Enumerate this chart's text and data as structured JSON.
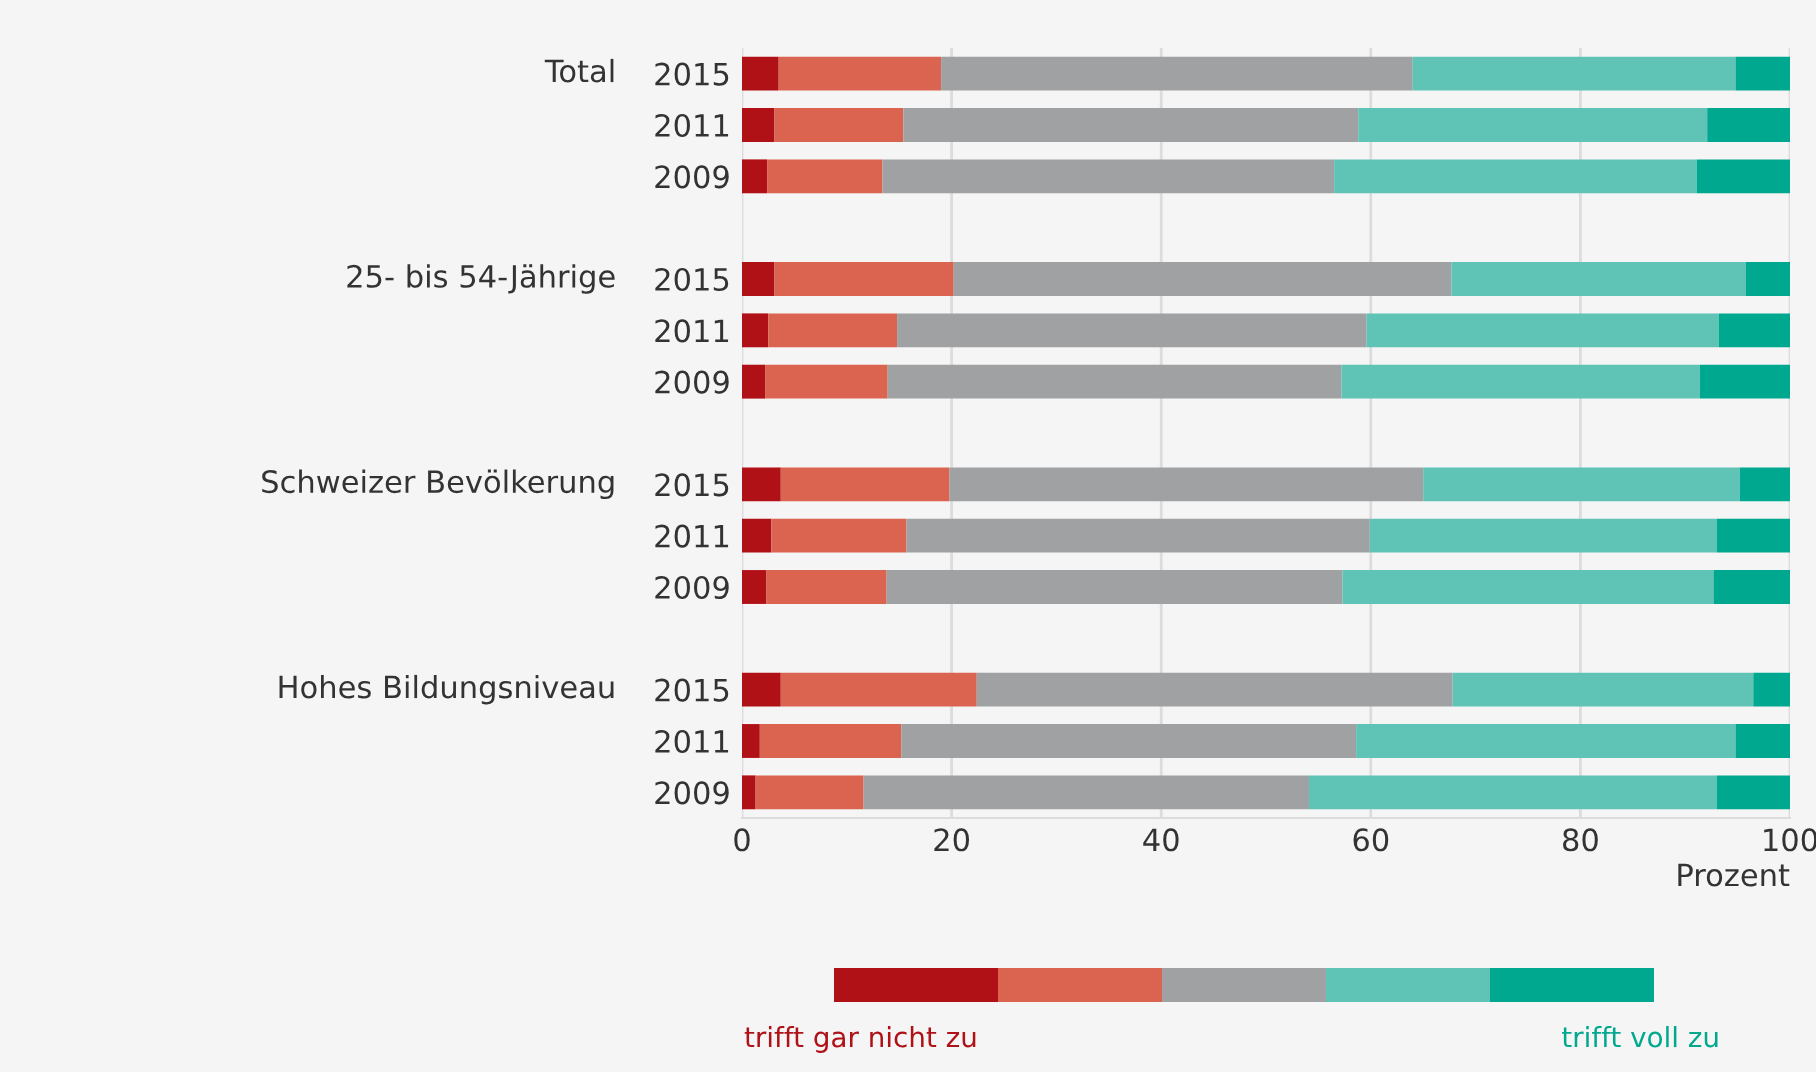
{
  "chart_data": {
    "type": "bar",
    "orientation": "horizontal",
    "stacked": true,
    "categories": [
      "2015",
      "2011",
      "2009",
      null,
      "2015",
      "2011",
      "2009",
      null,
      "2015",
      "2011",
      "2009",
      null,
      "2015",
      "2011",
      "2009"
    ],
    "annotations": [
      "Total",
      "25- bis 54-Jährige",
      "Schweizer Bevölkerung",
      "Hohes Bildungsniveau"
    ],
    "series": [
      {
        "name": "trifft gar nicht zu",
        "color": "#b01117",
        "values": [
          3.5,
          3.1,
          2.4,
          null,
          3.1,
          2.5,
          2.2,
          null,
          3.7,
          2.8,
          2.3,
          null,
          3.7,
          1.7,
          1.3
        ]
      },
      {
        "color": "#db6451",
        "values": [
          15.5,
          12.3,
          11.0,
          null,
          17.1,
          12.3,
          11.7,
          null,
          16.1,
          12.9,
          11.5,
          null,
          18.7,
          13.5,
          10.3
        ]
      },
      {
        "color": "#a0a1a2",
        "values": [
          45.0,
          43.4,
          43.1,
          null,
          47.5,
          44.8,
          43.3,
          null,
          45.2,
          44.2,
          43.5,
          null,
          45.4,
          43.4,
          42.5
        ]
      },
      {
        "color": "#5fc4b6",
        "values": [
          30.8,
          33.3,
          34.6,
          null,
          28.1,
          33.6,
          34.2,
          null,
          30.2,
          33.1,
          35.4,
          null,
          28.7,
          36.2,
          38.9
        ]
      },
      {
        "name": "trifft voll zu",
        "color": "#00a88f",
        "values": [
          5.2,
          7.9,
          8.9,
          null,
          4.2,
          6.8,
          8.6,
          null,
          4.8,
          7.0,
          7.3,
          null,
          3.5,
          5.2,
          7.0
        ]
      }
    ],
    "xlabel": "Prozent",
    "xlim": [
      0,
      100
    ],
    "xticks": [
      0,
      20,
      40,
      60,
      80,
      100
    ],
    "grid": "x",
    "legend": "bottom"
  }
}
